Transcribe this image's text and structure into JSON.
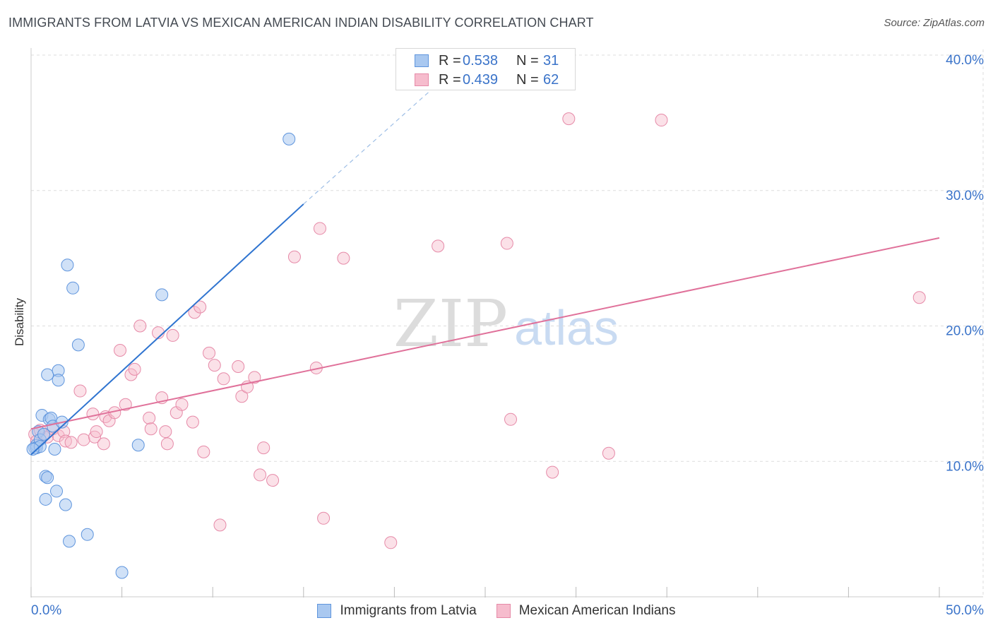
{
  "title": "IMMIGRANTS FROM LATVIA VS MEXICAN AMERICAN INDIAN DISABILITY CORRELATION CHART",
  "source": "Source: ZipAtlas.com",
  "watermark": {
    "zip": "ZIP",
    "atlas": "atlas"
  },
  "colors": {
    "blue_fill": "#a9c8f0",
    "blue_stroke": "#5f95dd",
    "blue_line": "#2f74d0",
    "pink_fill": "#f6bccd",
    "pink_stroke": "#e68aa8",
    "pink_line": "#e0719a",
    "grid": "#dddddd",
    "tick_text": "#3a73c9"
  },
  "legend": {
    "rows": [
      {
        "r_label": "R =",
        "r_value": "0.538",
        "n_label": "N =",
        "n_value": "31"
      },
      {
        "r_label": "R =",
        "r_value": "0.439",
        "n_label": "N =",
        "n_value": "62"
      }
    ]
  },
  "bottom_legend": {
    "series_a": "Immigrants from Latvia",
    "series_b": "Mexican American Indians"
  },
  "chart_data": {
    "type": "scatter",
    "title": "IMMIGRANTS FROM LATVIA VS MEXICAN AMERICAN INDIAN DISABILITY CORRELATION CHART",
    "xlabel": "",
    "ylabel": "Disability",
    "xlim": [
      0,
      50
    ],
    "ylim": [
      0,
      40
    ],
    "x_tick_labels": [
      "0.0%",
      "50.0%"
    ],
    "y_ticks": [
      10,
      20,
      30,
      40
    ],
    "y_tick_labels": [
      "10.0%",
      "20.0%",
      "30.0%",
      "40.0%"
    ],
    "series": [
      {
        "name": "Immigrants from Latvia",
        "r": 0.538,
        "n": 31,
        "points": [
          [
            0.2,
            11.0
          ],
          [
            0.3,
            11.2
          ],
          [
            0.3,
            11.0
          ],
          [
            0.4,
            12.2
          ],
          [
            0.5,
            11.6
          ],
          [
            0.5,
            11.1
          ],
          [
            0.6,
            13.4
          ],
          [
            0.7,
            12.0
          ],
          [
            0.8,
            8.9
          ],
          [
            0.8,
            7.2
          ],
          [
            0.9,
            8.8
          ],
          [
            0.9,
            16.4
          ],
          [
            1.0,
            13.1
          ],
          [
            1.1,
            13.2
          ],
          [
            1.2,
            12.6
          ],
          [
            1.3,
            10.9
          ],
          [
            1.4,
            7.8
          ],
          [
            1.5,
            16.7
          ],
          [
            1.5,
            16.0
          ],
          [
            1.7,
            12.9
          ],
          [
            1.9,
            6.8
          ],
          [
            2.0,
            24.5
          ],
          [
            2.1,
            4.1
          ],
          [
            2.3,
            22.8
          ],
          [
            2.6,
            18.6
          ],
          [
            3.1,
            4.6
          ],
          [
            5.0,
            1.8
          ],
          [
            5.9,
            11.2
          ],
          [
            7.2,
            22.3
          ],
          [
            14.2,
            33.8
          ],
          [
            0.1,
            10.9
          ]
        ],
        "trend": {
          "x0": 0,
          "y0": 10.5,
          "x1": 15,
          "y1": 29.0,
          "dash_to_x": 23,
          "dash_to_y": 38.6
        }
      },
      {
        "name": "Mexican American Indians",
        "r": 0.439,
        "n": 62,
        "points": [
          [
            0.2,
            12.0
          ],
          [
            0.3,
            11.5
          ],
          [
            0.5,
            12.3
          ],
          [
            0.7,
            12.0
          ],
          [
            0.9,
            11.8
          ],
          [
            1.2,
            12.4
          ],
          [
            1.5,
            11.9
          ],
          [
            1.8,
            12.2
          ],
          [
            1.9,
            11.5
          ],
          [
            2.2,
            11.4
          ],
          [
            2.7,
            15.2
          ],
          [
            2.9,
            11.6
          ],
          [
            3.4,
            13.5
          ],
          [
            3.5,
            11.8
          ],
          [
            3.6,
            12.2
          ],
          [
            4.0,
            11.3
          ],
          [
            4.1,
            13.3
          ],
          [
            4.3,
            13.0
          ],
          [
            4.6,
            13.6
          ],
          [
            4.9,
            18.2
          ],
          [
            5.2,
            14.2
          ],
          [
            5.5,
            16.4
          ],
          [
            5.7,
            16.8
          ],
          [
            6.0,
            20.0
          ],
          [
            6.5,
            13.2
          ],
          [
            6.6,
            12.4
          ],
          [
            7.0,
            19.5
          ],
          [
            7.2,
            14.7
          ],
          [
            7.4,
            12.2
          ],
          [
            7.5,
            11.3
          ],
          [
            7.8,
            19.3
          ],
          [
            8.0,
            13.6
          ],
          [
            8.3,
            14.2
          ],
          [
            8.9,
            12.9
          ],
          [
            9.0,
            21.0
          ],
          [
            9.3,
            21.4
          ],
          [
            9.5,
            10.7
          ],
          [
            9.8,
            18.0
          ],
          [
            10.1,
            17.1
          ],
          [
            10.4,
            5.3
          ],
          [
            10.6,
            16.1
          ],
          [
            11.4,
            17.0
          ],
          [
            11.6,
            14.8
          ],
          [
            11.9,
            15.5
          ],
          [
            12.3,
            16.2
          ],
          [
            12.6,
            9.0
          ],
          [
            12.8,
            11.0
          ],
          [
            13.3,
            8.6
          ],
          [
            14.5,
            25.1
          ],
          [
            15.7,
            16.9
          ],
          [
            15.9,
            27.2
          ],
          [
            16.1,
            5.8
          ],
          [
            17.2,
            25.0
          ],
          [
            19.8,
            4.0
          ],
          [
            22.4,
            25.9
          ],
          [
            26.2,
            26.1
          ],
          [
            26.4,
            13.1
          ],
          [
            28.7,
            9.2
          ],
          [
            29.6,
            35.3
          ],
          [
            31.8,
            10.6
          ],
          [
            34.7,
            35.2
          ],
          [
            48.9,
            22.1
          ]
        ],
        "trend": {
          "x0": 0,
          "y0": 12.4,
          "x1": 50,
          "y1": 26.5
        }
      }
    ]
  }
}
